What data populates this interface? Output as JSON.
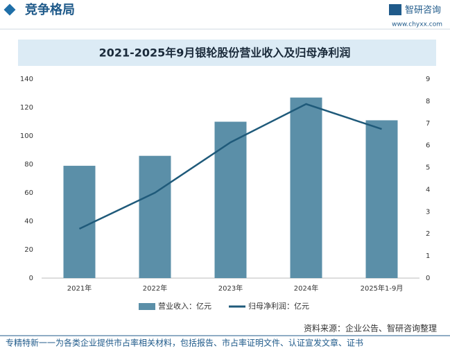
{
  "header": {
    "title": "竞争格局",
    "logo": "智研咨询",
    "url": "www.chyxx.com"
  },
  "chart_data": {
    "type": "bar-line",
    "title": "2021-2025年9月银轮股份营业收入及归母净利润",
    "categories": [
      "2021年",
      "2022年",
      "2023年",
      "2024年",
      "2025年1-9月"
    ],
    "series": [
      {
        "name": "营业收入：亿元",
        "type": "bar",
        "color": "#5b8fa8",
        "values": [
          79,
          86,
          110,
          127,
          111
        ]
      },
      {
        "name": "归母净利润：亿元",
        "type": "line",
        "axis": "y2",
        "color": "#1f5a7a",
        "values": [
          2.23,
          3.86,
          6.14,
          7.87,
          6.74
        ]
      }
    ],
    "ylim": [
      0,
      140
    ],
    "yticks": [
      0,
      20,
      40,
      60,
      80,
      100,
      120,
      140
    ],
    "y2lim": [
      0,
      9
    ],
    "y2ticks": [
      0,
      1,
      2,
      3,
      4,
      5,
      6,
      7,
      8,
      9
    ],
    "legend": "bottom"
  },
  "source": "资料来源：企业公告、智研咨询整理",
  "footer": "专精特新一一为各类企业提供市占率相关材料，包括报告、市占率证明文件、认证宣发文章、证书"
}
